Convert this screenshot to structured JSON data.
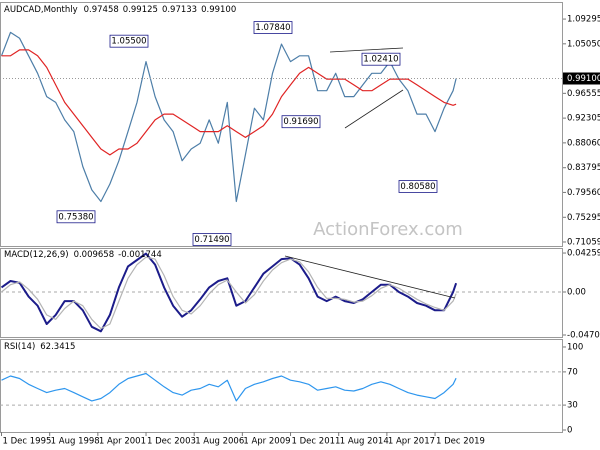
{
  "chart_data": [
    {
      "type": "line",
      "title": "AUDCAD,Monthly",
      "last_bar": {
        "open": 0.97458,
        "high": 0.99125,
        "low": 0.97133,
        "close": {
          "value": 0.991,
          "label": "0.99100"
        }
      },
      "watermark": "ActionForex.com",
      "x": [
        "1995-12-01",
        "1996-06-01",
        "1996-12-01",
        "1997-06-01",
        "1997-12-01",
        "1998-06-01",
        "1998-12-01",
        "1999-06-01",
        "1999-12-01",
        "2000-06-01",
        "2000-12-01",
        "2001-06-01",
        "2001-12-01",
        "2002-06-01",
        "2002-12-01",
        "2003-06-01",
        "2003-12-01",
        "2004-06-01",
        "2004-12-01",
        "2005-06-01",
        "2005-12-01",
        "2006-06-01",
        "2006-12-01",
        "2007-06-01",
        "2007-12-01",
        "2008-06-01",
        "2008-12-01",
        "2009-06-01",
        "2009-12-01",
        "2010-06-01",
        "2010-12-01",
        "2011-06-01",
        "2011-12-01",
        "2012-06-01",
        "2012-12-01",
        "2013-06-01",
        "2013-12-01",
        "2014-06-01",
        "2014-12-01",
        "2015-06-01",
        "2015-12-01",
        "2016-06-01",
        "2016-12-01",
        "2017-06-01",
        "2017-12-01",
        "2018-06-01",
        "2018-12-01",
        "2019-06-01",
        "2019-12-01",
        "2020-06-01",
        "2020-12-01",
        "2021-02-01"
      ],
      "xlim": [
        "1995-11-01",
        "2027-01-01"
      ],
      "series": [
        {
          "color": "#4d7ea8",
          "values": [
            1.03,
            1.07,
            1.06,
            1.03,
            1.0,
            0.96,
            0.95,
            0.92,
            0.9,
            0.84,
            0.8,
            0.78,
            0.81,
            0.85,
            0.9,
            0.95,
            1.02,
            0.96,
            0.92,
            0.9,
            0.85,
            0.87,
            0.88,
            0.92,
            0.88,
            0.95,
            0.78,
            0.86,
            0.94,
            0.92,
            1.0,
            1.05,
            1.02,
            1.03,
            1.03,
            0.97,
            0.97,
            1.0,
            0.96,
            0.96,
            0.98,
            1.0,
            1.0,
            1.02,
            0.99,
            0.97,
            0.93,
            0.93,
            0.9,
            0.94,
            0.97,
            0.991
          ]
        },
        {
          "color": "#e02424",
          "values": [
            1.03,
            1.03,
            1.04,
            1.04,
            1.03,
            1.01,
            0.98,
            0.95,
            0.93,
            0.91,
            0.89,
            0.87,
            0.86,
            0.87,
            0.87,
            0.88,
            0.9,
            0.92,
            0.93,
            0.93,
            0.92,
            0.91,
            0.9,
            0.9,
            0.9,
            0.91,
            0.9,
            0.89,
            0.9,
            0.91,
            0.93,
            0.96,
            0.98,
            1.0,
            1.01,
            1.0,
            0.99,
            0.99,
            0.99,
            0.98,
            0.97,
            0.97,
            0.98,
            0.99,
            0.99,
            0.99,
            0.98,
            0.97,
            0.96,
            0.95,
            0.945,
            0.947
          ]
        }
      ],
      "ylim": [
        0.7037,
        1.1205
      ],
      "yticks": [
        1.09295,
        {
          "value": 1.0505,
          "label": "1.05050"
        },
        0.96555,
        0.92305,
        {
          "value": 0.8806,
          "label": "0.88060"
        },
        0.83795,
        {
          "value": 0.7956,
          "label": "0.79560"
        },
        0.75295,
        0.71059
      ],
      "annotations": [
        {
          "value": 1.055,
          "label": "1.05500"
        },
        {
          "value": 1.0784,
          "label": "1.07840"
        },
        {
          "value": 0.7538,
          "label": "0.75380"
        },
        {
          "value": 0.7149,
          "label": "0.71490"
        },
        {
          "value": 0.9169,
          "label": "0.91690"
        },
        {
          "value": 1.0241,
          "label": "1.02410"
        },
        {
          "value": 0.8058,
          "label": "0.80580"
        }
      ]
    },
    {
      "type": "line",
      "title": "MACD(12,26,9)",
      "x": [
        "1995-12-01",
        "1996-06-01",
        "1996-12-01",
        "1997-06-01",
        "1997-12-01",
        "1998-06-01",
        "1998-12-01",
        "1999-06-01",
        "1999-12-01",
        "2000-06-01",
        "2000-12-01",
        "2001-06-01",
        "2001-12-01",
        "2002-06-01",
        "2002-12-01",
        "2003-06-01",
        "2003-12-01",
        "2004-06-01",
        "2004-12-01",
        "2005-06-01",
        "2005-12-01",
        "2006-06-01",
        "2006-12-01",
        "2007-06-01",
        "2007-12-01",
        "2008-06-01",
        "2008-12-01",
        "2009-06-01",
        "2009-12-01",
        "2010-06-01",
        "2010-12-01",
        "2011-06-01",
        "2011-12-01",
        "2012-06-01",
        "2012-12-01",
        "2013-06-01",
        "2013-12-01",
        "2014-06-01",
        "2014-12-01",
        "2015-06-01",
        "2015-12-01",
        "2016-06-01",
        "2016-12-01",
        "2017-06-01",
        "2017-12-01",
        "2018-06-01",
        "2018-12-01",
        "2019-06-01",
        "2019-12-01",
        "2020-06-01",
        "2020-12-01",
        "2021-02-01"
      ],
      "xlim": [
        "1995-11-01",
        "2027-01-01"
      ],
      "series": [
        {
          "color": "#1c1c8a",
          "values": [
            0.005,
            0.012,
            0.01,
            -0.005,
            -0.015,
            -0.035,
            -0.025,
            -0.01,
            -0.01,
            -0.02,
            -0.038,
            -0.043,
            -0.025,
            0.005,
            0.028,
            0.035,
            0.042,
            0.03,
            0.005,
            -0.015,
            -0.027,
            -0.02,
            -0.008,
            0.005,
            0.012,
            0.015,
            -0.015,
            -0.01,
            0.005,
            0.02,
            0.028,
            0.036,
            0.037,
            0.03,
            0.015,
            -0.005,
            -0.01,
            -0.005,
            -0.01,
            -0.012,
            -0.008,
            0,
            0.008,
            0.008,
            0,
            -0.005,
            -0.012,
            -0.015,
            -0.02,
            -0.02,
            0,
            0.009658
          ]
        },
        {
          "color": "#b4b4b4",
          "values": [
            0,
            0.008,
            0.011,
            0.003,
            -0.008,
            -0.025,
            -0.03,
            -0.018,
            -0.01,
            -0.015,
            -0.03,
            -0.04,
            -0.035,
            -0.01,
            0.015,
            0.03,
            0.038,
            0.036,
            0.018,
            -0.005,
            -0.02,
            -0.024,
            -0.015,
            -0.002,
            0.008,
            0.013,
            0,
            -0.012,
            -0.003,
            0.012,
            0.024,
            0.032,
            0.036,
            0.033,
            0.022,
            0.005,
            -0.007,
            -0.007,
            -0.008,
            -0.011,
            -0.01,
            -0.004,
            0.004,
            0.008,
            0.004,
            -0.002,
            -0.008,
            -0.013,
            -0.017,
            -0.02,
            -0.01,
            -0.001744
          ]
        }
      ],
      "ylim": [
        -0.0492,
        0.0481
      ],
      "yticks": [
        0.042599,
        {
          "value": 0,
          "label": "0.00"
        },
        -0.047016
      ],
      "zero_line": 0
    },
    {
      "type": "line",
      "title": "RSI(14)",
      "x": [
        "1995-12-01",
        "1996-06-01",
        "1996-12-01",
        "1997-06-01",
        "1997-12-01",
        "1998-06-01",
        "1998-12-01",
        "1999-06-01",
        "1999-12-01",
        "2000-06-01",
        "2000-12-01",
        "2001-06-01",
        "2001-12-01",
        "2002-06-01",
        "2002-12-01",
        "2003-06-01",
        "2003-12-01",
        "2004-06-01",
        "2004-12-01",
        "2005-06-01",
        "2005-12-01",
        "2006-06-01",
        "2006-12-01",
        "2007-06-01",
        "2007-12-01",
        "2008-06-01",
        "2008-12-01",
        "2009-06-01",
        "2009-12-01",
        "2010-06-01",
        "2010-12-01",
        "2011-06-01",
        "2011-12-01",
        "2012-06-01",
        "2012-12-01",
        "2013-06-01",
        "2013-12-01",
        "2014-06-01",
        "2014-12-01",
        "2015-06-01",
        "2015-12-01",
        "2016-06-01",
        "2016-12-01",
        "2017-06-01",
        "2017-12-01",
        "2018-06-01",
        "2018-12-01",
        "2019-06-01",
        "2019-12-01",
        "2020-06-01",
        "2020-12-01",
        "2021-02-01"
      ],
      "xlim": [
        "1995-11-01",
        "2027-01-01"
      ],
      "series": [
        {
          "color": "#2e96ee",
          "values": [
            60,
            65,
            62,
            55,
            50,
            45,
            48,
            50,
            45,
            40,
            35,
            38,
            45,
            55,
            62,
            65,
            68,
            60,
            52,
            45,
            42,
            48,
            50,
            55,
            52,
            60,
            35,
            50,
            55,
            58,
            62,
            65,
            60,
            58,
            55,
            48,
            50,
            52,
            48,
            47,
            50,
            55,
            58,
            55,
            50,
            45,
            42,
            40,
            38,
            45,
            55,
            62.3415
          ]
        }
      ],
      "ylim": [
        -2.4,
        108.4
      ],
      "yticks": [
        100,
        70,
        30,
        0
      ],
      "levels": [
        70,
        30
      ],
      "xticks": [
        {
          "value": "1995-12-01",
          "label": "1 Dec 1995"
        },
        {
          "value": "1998-08-01",
          "label": "1 Aug 1998"
        },
        {
          "value": "2001-04-01",
          "label": "1 Apr 2001"
        },
        {
          "value": "2003-12-01",
          "label": "1 Dec 2003"
        },
        {
          "value": "2006-08-01",
          "label": "1 Aug 2006"
        },
        {
          "value": "2009-04-01",
          "label": "1 Apr 2009"
        },
        {
          "value": "2011-12-01",
          "label": "1 Dec 2011"
        },
        {
          "value": "2014-08-01",
          "label": "1 Aug 2014"
        },
        {
          "value": "2017-04-01",
          "label": "1 Apr 2017"
        },
        {
          "value": "2019-12-01",
          "label": "1 Dec 2019"
        }
      ]
    }
  ]
}
